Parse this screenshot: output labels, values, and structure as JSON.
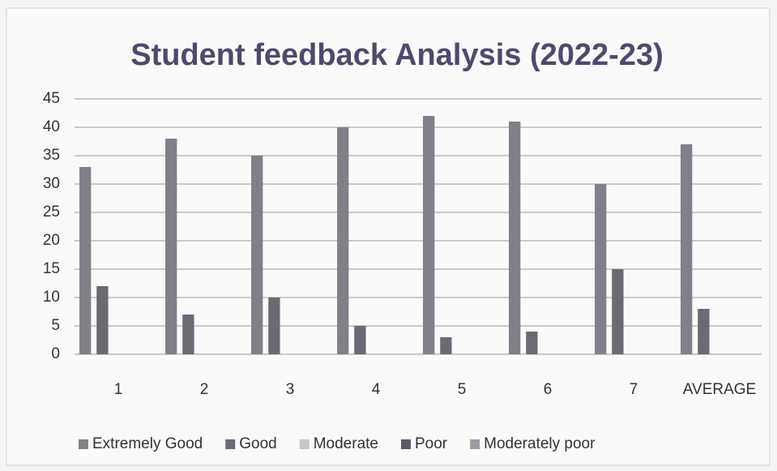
{
  "chart_data": {
    "type": "bar",
    "title": "Student feedback Analysis (2022-23)",
    "categories": [
      "1",
      "2",
      "3",
      "4",
      "5",
      "6",
      "7",
      "AVERAGE"
    ],
    "series": [
      {
        "name": "Extremely Good",
        "color": "#80808b",
        "values": [
          33,
          38,
          35,
          40,
          42,
          41,
          30,
          37
        ]
      },
      {
        "name": "Good",
        "color": "#6a6a74",
        "values": [
          12,
          7,
          10,
          5,
          3,
          4,
          15,
          8
        ]
      },
      {
        "name": "Moderate",
        "color": "#c6c6cc",
        "values": [
          0,
          0,
          0,
          0,
          0,
          0,
          0,
          0
        ]
      },
      {
        "name": "Poor",
        "color": "#5c5c66",
        "values": [
          0,
          0,
          0,
          0,
          0,
          0,
          0,
          0
        ]
      },
      {
        "name": "Moderately poor",
        "color": "#9c9ca4",
        "values": [
          0,
          0,
          0,
          0,
          0,
          0,
          0,
          0
        ]
      }
    ],
    "ylim": [
      0,
      45
    ],
    "yticks": [
      0,
      5,
      10,
      15,
      20,
      25,
      30,
      35,
      40,
      45
    ],
    "grid": true,
    "legend": "bottom"
  }
}
